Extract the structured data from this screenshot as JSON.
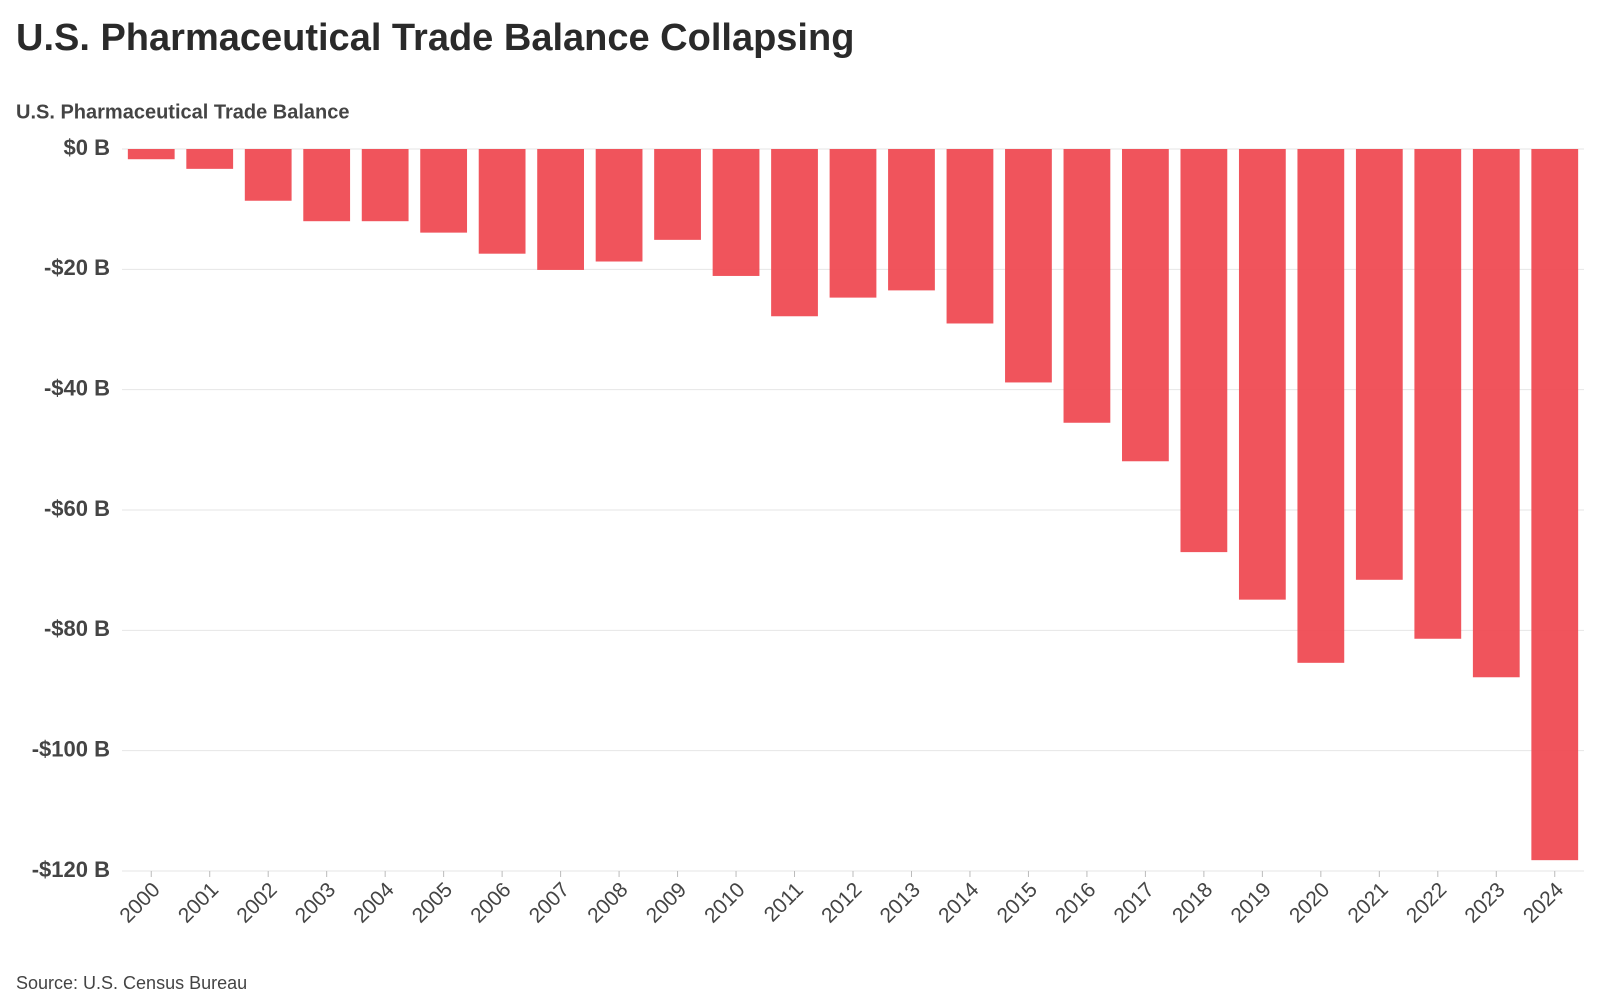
{
  "chart_data": {
    "type": "bar",
    "title": "U.S. Pharmaceutical Trade Balance Collapsing",
    "y_label": "U.S. Pharmaceutical Trade Balance",
    "source": "Source: U.S. Census Bureau",
    "categories": [
      "2000",
      "2001",
      "2002",
      "2003",
      "2004",
      "2005",
      "2006",
      "2007",
      "2008",
      "2009",
      "2010",
      "2011",
      "2012",
      "2013",
      "2014",
      "2015",
      "2016",
      "2017",
      "2018",
      "2019",
      "2020",
      "2021",
      "2022",
      "2023",
      "2024"
    ],
    "values": [
      -1.7,
      -3.3,
      -8.6,
      -12.0,
      -12.0,
      -13.9,
      -17.4,
      -20.1,
      -18.7,
      -15.1,
      -21.1,
      -27.8,
      -24.7,
      -23.5,
      -29.0,
      -38.8,
      -45.5,
      -51.9,
      -67.0,
      -74.9,
      -85.4,
      -71.6,
      -81.4,
      -87.8,
      -118.2
    ],
    "color": "#ef4b53",
    "ylim": [
      -120,
      0
    ],
    "yticks": [
      {
        "value": 0,
        "label": "$0 B"
      },
      {
        "value": -20,
        "label": "-$20 B"
      },
      {
        "value": -40,
        "label": "-$40 B"
      },
      {
        "value": -60,
        "label": "-$60 B"
      },
      {
        "value": -80,
        "label": "-$80 B"
      },
      {
        "value": -100,
        "label": "-$100 B"
      },
      {
        "value": -120,
        "label": "-$120 B"
      }
    ],
    "grid": true
  }
}
